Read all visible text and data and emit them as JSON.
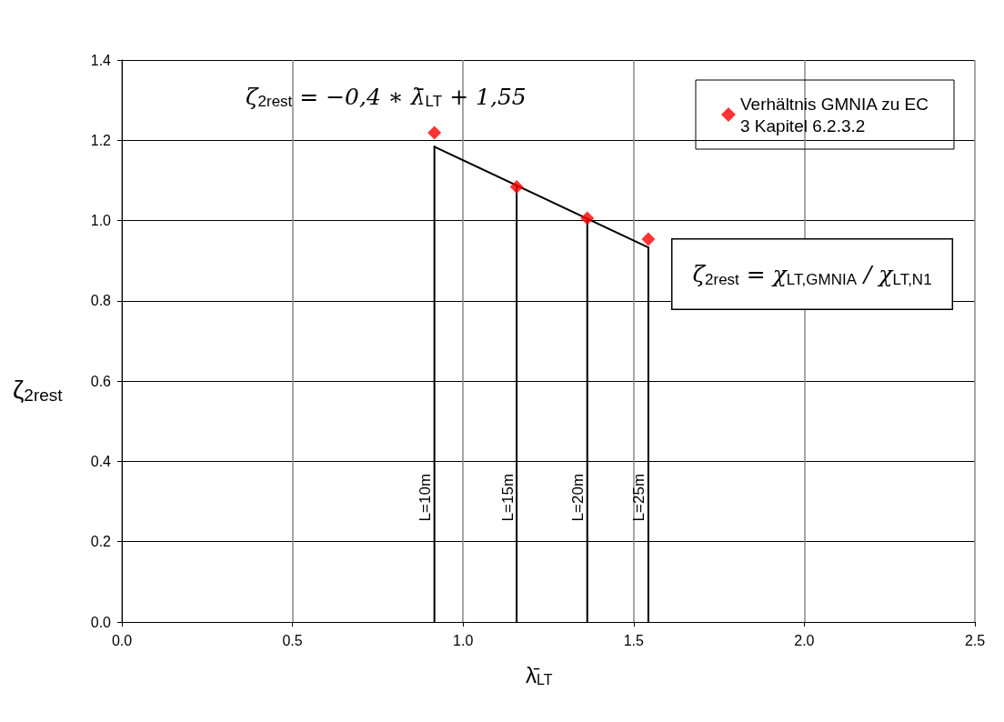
{
  "chart_data": {
    "type": "scatter",
    "xlabel": "λ̄$_{LT}$",
    "ylabel": "ζ$_{2rest}$",
    "xlim": [
      0,
      2.5
    ],
    "xticks": [
      {
        "value": 0,
        "label": "0.0"
      },
      {
        "value": 0.5,
        "label": "0.5"
      },
      {
        "value": 1,
        "label": "1.0"
      },
      {
        "value": 1.5,
        "label": "1.5"
      },
      {
        "value": 2,
        "label": "2.0"
      },
      {
        "value": 2.5,
        "label": "2.5"
      }
    ],
    "ylim": [
      0,
      1.4
    ],
    "yticks": [
      {
        "value": 0,
        "label": "0.0"
      },
      {
        "value": 0.2,
        "label": "0.2"
      },
      {
        "value": 0.4,
        "label": "0.4"
      },
      {
        "value": 0.6,
        "label": "0.6"
      },
      {
        "value": 0.8,
        "label": "0.8"
      },
      {
        "value": 1,
        "label": "1.0"
      },
      {
        "value": 1.2,
        "label": "1.2"
      },
      {
        "value": 1.4,
        "label": "1.4"
      }
    ],
    "grid": true,
    "legend": "top right",
    "marker": "diamond",
    "series": [
      {
        "type": "line",
        "color": "#000000",
        "marker": "none",
        "x": [
          0.916,
          1.543
        ],
        "values": [
          1.184,
          0.933
        ]
      },
      {
        "type": "line",
        "color": "#000000",
        "marker": "none",
        "x": [
          0.916,
          0.916
        ],
        "values": [
          0,
          1.184
        ]
      },
      {
        "type": "line",
        "color": "#000000",
        "marker": "none",
        "x": [
          1.157,
          1.157
        ],
        "values": [
          0,
          1.087
        ]
      },
      {
        "type": "line",
        "color": "#000000",
        "marker": "none",
        "x": [
          1.364,
          1.364
        ],
        "values": [
          0,
          1.004
        ]
      },
      {
        "type": "line",
        "color": "#000000",
        "marker": "none",
        "x": [
          1.543,
          1.543
        ],
        "values": [
          0,
          0.933
        ]
      },
      {
        "name": "Verhältnis GMNIA zu EC 3 Kapitel 6.2.3.2",
        "color": "#ff0000",
        "x": [
          0.916,
          1.157,
          1.364,
          1.543
        ],
        "values": [
          1.219,
          1.084,
          1.006,
          0.954
        ]
      }
    ],
    "annotations": [
      "ζ$_{2rest}$ = −0,4 ∗ λ̄$_{LT}$ + 1,55",
      "ζ$_{2rest}$ = χ$_{LT,GMNIA}$ / χ$_{LT,N1}$",
      {
        "text": "L=10m",
        "x": 0.916,
        "y": 0.31
      },
      {
        "text": "L=15m",
        "x": 1.157,
        "y": 0.31
      },
      {
        "text": "L=20m",
        "x": 1.364,
        "y": 0.31
      },
      {
        "text": "L=25m",
        "x": 1.543,
        "y": 0.31
      }
    ]
  }
}
